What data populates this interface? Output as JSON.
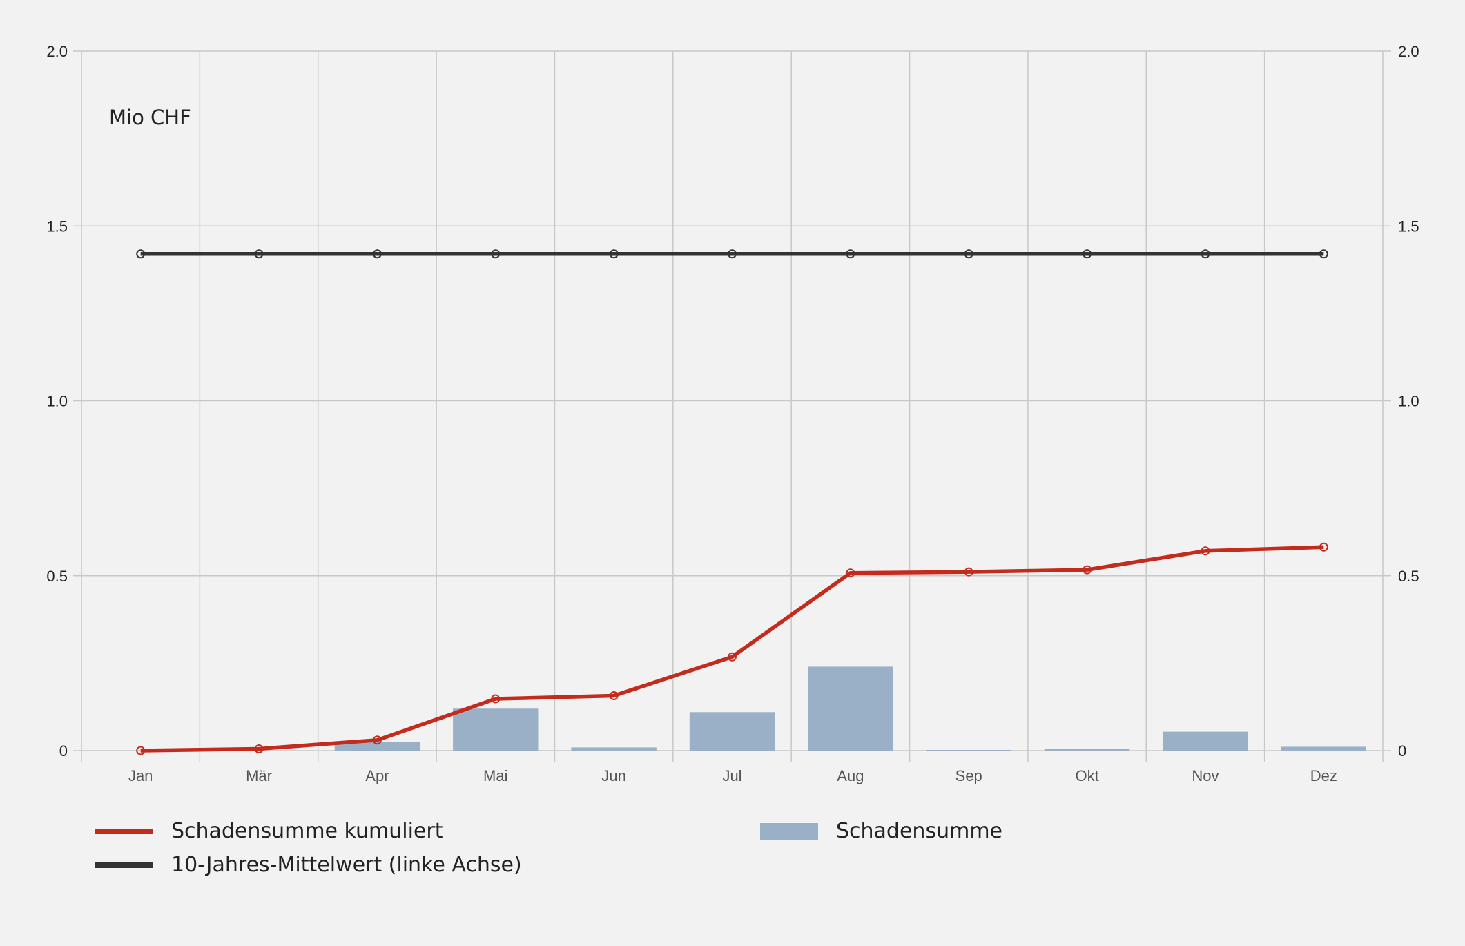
{
  "colors": {
    "background": "#f2f2f2",
    "grid": "#c8c8c8",
    "cumulative_line": "#c42b1c",
    "average_line": "#333333",
    "bars": "#9ab0c6"
  },
  "chart_data": {
    "type": "bar",
    "unit_label": "Mio CHF",
    "categories": [
      "Jan",
      "Mär",
      "Apr",
      "Mai",
      "Jun",
      "Jul",
      "Aug",
      "Sep",
      "Okt",
      "Nov",
      "Dez"
    ],
    "y_left": {
      "ticks": [
        "0",
        "0.5",
        "1.0",
        "1.5",
        "2.0"
      ],
      "ylim": [
        0,
        2.0
      ]
    },
    "y_right": {
      "ticks": [
        "0",
        "0.5",
        "1.0",
        "1.5",
        "2.0"
      ],
      "ylim": [
        0,
        2.0
      ]
    },
    "grid": true,
    "legend_position": "bottom",
    "series": [
      {
        "name": "Schadensumme kumuliert",
        "type": "line",
        "color": "#c42b1c",
        "values": [
          0.0,
          0.005,
          0.03,
          0.148,
          0.157,
          0.268,
          0.508,
          0.511,
          0.517,
          0.571,
          0.582
        ]
      },
      {
        "name": "10-Jahres-Mittelwert (linke Achse)",
        "type": "line",
        "color": "#333333",
        "values": [
          1.42,
          1.42,
          1.42,
          1.42,
          1.42,
          1.42,
          1.42,
          1.42,
          1.42,
          1.42,
          1.42
        ]
      },
      {
        "name": "Schadensumme",
        "type": "bar",
        "color": "#9ab0c6",
        "values": [
          0.0,
          0.0,
          0.025,
          0.12,
          0.009,
          0.11,
          0.24,
          0.002,
          0.004,
          0.054,
          0.011
        ]
      }
    ]
  },
  "legend": {
    "cumulative": "Schadensumme kumuliert",
    "average": "10-Jahres-Mittelwert (linke Achse)",
    "bars": "Schadensumme"
  }
}
